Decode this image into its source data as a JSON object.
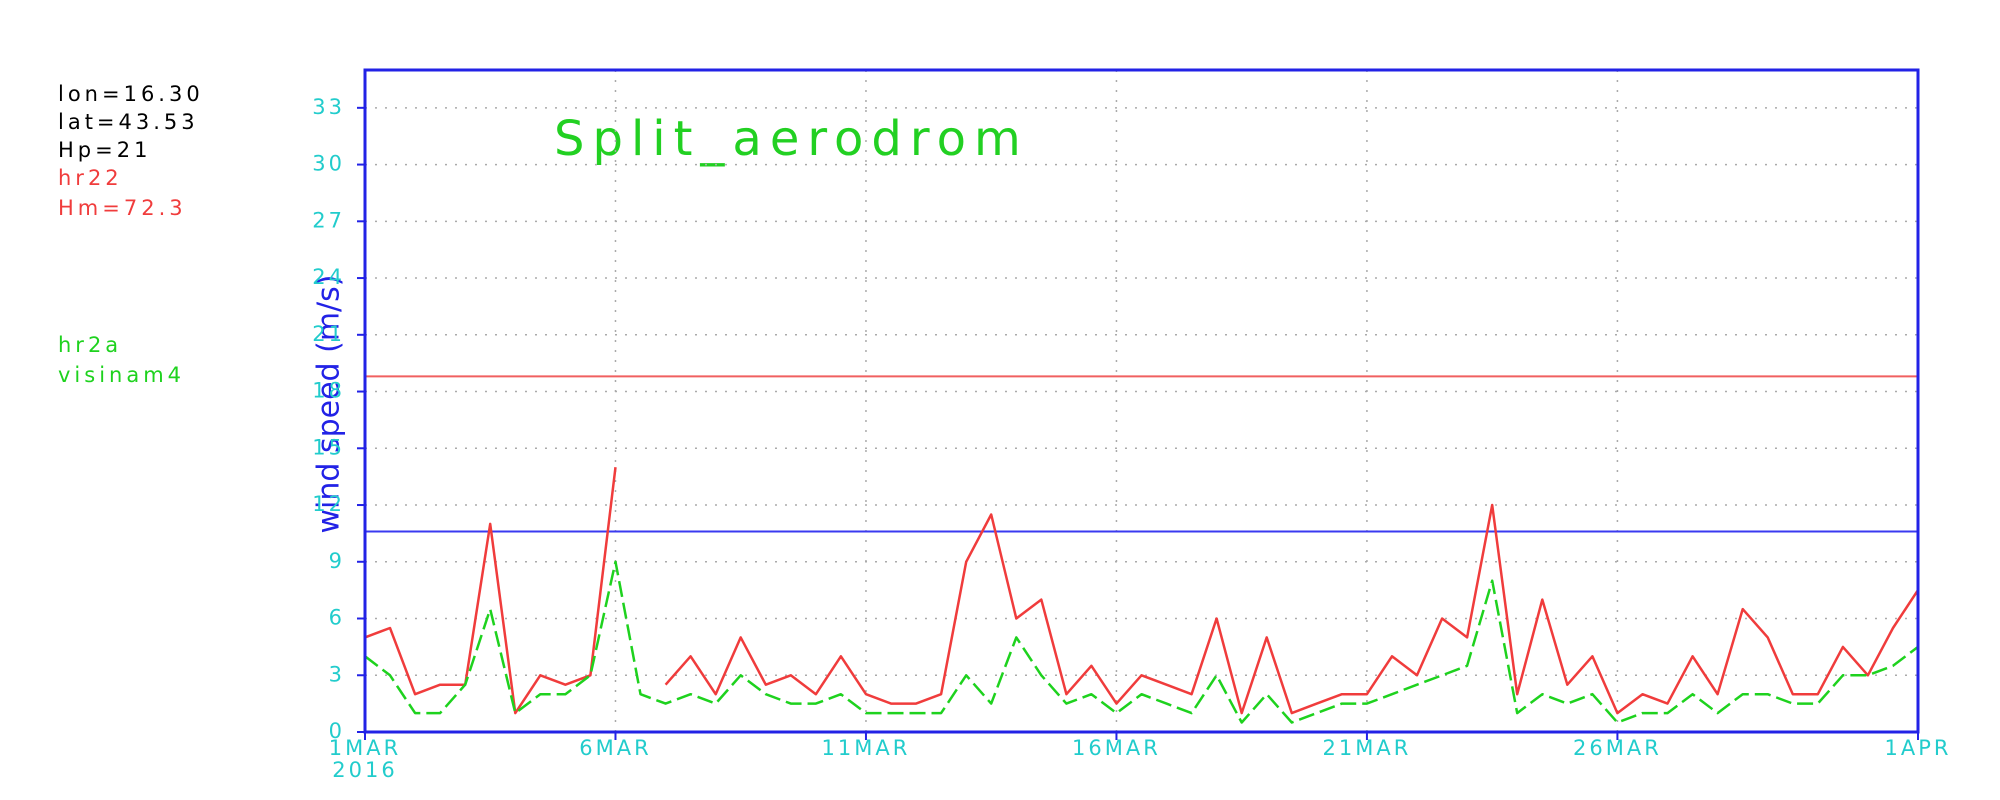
{
  "chart_data": {
    "type": "line",
    "title": "Split_aerodrom",
    "title_color": "#22d022",
    "ylabel": "wind speed (m/s)",
    "ylabel_color": "#2222e6",
    "tick_color": "#22cccc",
    "frame_color": "#2222e6",
    "info": [
      {
        "text": "lon=16.30",
        "color": "#000000"
      },
      {
        "text": "lat=43.53",
        "color": "#000000"
      },
      {
        "text": "Hp=21",
        "color": "#000000"
      }
    ],
    "x_sublabel": "2016",
    "xlim": [
      0,
      31
    ],
    "xticks": [
      {
        "value": 0,
        "label": "1MAR"
      },
      {
        "value": 5,
        "label": "6MAR"
      },
      {
        "value": 10,
        "label": "11MAR"
      },
      {
        "value": 15,
        "label": "16MAR"
      },
      {
        "value": 20,
        "label": "21MAR"
      },
      {
        "value": 25,
        "label": "26MAR"
      },
      {
        "value": 31,
        "label": "1APR"
      }
    ],
    "ylim": [
      0,
      35
    ],
    "yticks": [
      0,
      3,
      6,
      9,
      12,
      15,
      18,
      21,
      24,
      27,
      30,
      33
    ],
    "grid": true,
    "reference_lines": [
      {
        "value": 18.8,
        "color": "#f06060"
      },
      {
        "value": 10.6,
        "color": "#3a3af0"
      }
    ],
    "x": [
      0,
      0.5,
      1,
      1.5,
      2,
      2.5,
      3,
      3.5,
      4,
      4.5,
      5,
      5.5,
      6,
      6.5,
      7,
      7.5,
      8,
      8.5,
      9,
      9.5,
      10,
      10.5,
      11,
      11.5,
      12,
      12.5,
      13,
      13.5,
      14,
      14.5,
      15,
      15.5,
      16,
      16.5,
      17,
      17.5,
      18,
      18.5,
      19,
      19.5,
      20,
      20.5,
      21,
      21.5,
      22,
      22.5,
      23,
      23.5,
      24,
      24.5,
      25,
      25.5,
      26,
      26.5,
      27,
      27.5,
      28,
      28.5,
      29,
      29.5,
      30,
      30.5,
      31
    ],
    "series": [
      {
        "name": "hr22",
        "note": "Hm=72.3",
        "color": "#f03c3c",
        "dashed": false,
        "values": [
          5,
          5.5,
          2,
          2.5,
          2.5,
          11,
          1,
          3,
          2.5,
          3,
          14,
          null,
          2.5,
          4,
          2,
          5,
          2.5,
          3,
          2,
          4,
          2,
          1.5,
          1.5,
          2,
          9,
          11.5,
          6,
          7,
          2,
          3.5,
          1.5,
          3,
          2.5,
          2,
          6,
          1,
          5,
          1,
          1.5,
          2,
          2,
          4,
          3,
          6,
          5,
          12,
          2,
          7,
          2.5,
          4,
          1,
          2,
          1.5,
          4,
          2,
          6.5,
          5,
          2,
          2,
          4.5,
          3,
          5.5,
          7.5
        ]
      },
      {
        "name": "hr2a",
        "note": "visinam4",
        "color": "#1ed21e",
        "dashed": true,
        "values": [
          4,
          3,
          1,
          1,
          2.5,
          6.5,
          1,
          2,
          2,
          3,
          9,
          2,
          1.5,
          2,
          1.5,
          3,
          2,
          1.5,
          1.5,
          2,
          1,
          1,
          1,
          1,
          3,
          1.5,
          5,
          3,
          1.5,
          2,
          1,
          2,
          1.5,
          1,
          3,
          0.5,
          2,
          0.5,
          1,
          1.5,
          1.5,
          2,
          2.5,
          3,
          3.5,
          8,
          1,
          2,
          1.5,
          2,
          0.5,
          1,
          1,
          2,
          1,
          2,
          2,
          1.5,
          1.5,
          3,
          3,
          3.5,
          4.5
        ]
      }
    ]
  }
}
